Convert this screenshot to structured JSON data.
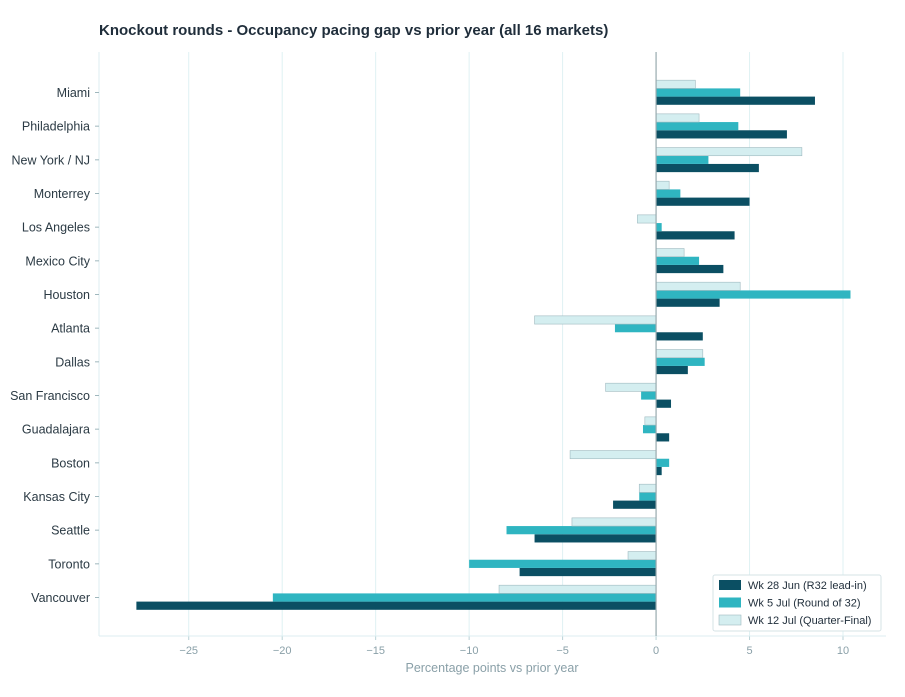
{
  "chart_data": {
    "type": "bar",
    "orientation": "horizontal",
    "title": "Knockout rounds - Occupancy pacing gap vs prior year (all 16 markets)",
    "xlabel": "Percentage points vs prior year",
    "ylabel": "",
    "xlim": [
      -29.8,
      12.3
    ],
    "xticks": [
      -25,
      -20,
      -15,
      -10,
      -5,
      0,
      5,
      10
    ],
    "xtick_labels": [
      "−25",
      "−20",
      "−15",
      "−10",
      "−5",
      "0",
      "5",
      "10"
    ],
    "grid": "vertical",
    "legend_position": "bottom-right",
    "categories": [
      "Miami",
      "Philadelphia",
      "New York / NJ",
      "Monterrey",
      "Los Angeles",
      "Mexico City",
      "Houston",
      "Atlanta",
      "Dallas",
      "San Francisco",
      "Guadalajara",
      "Boston",
      "Kansas City",
      "Seattle",
      "Toronto",
      "Vancouver"
    ],
    "series": [
      {
        "name": "Wk 28 Jun (R32 lead-in)",
        "color": "#0b4f63",
        "values": [
          8.5,
          7.0,
          5.5,
          5.0,
          4.2,
          3.6,
          3.4,
          2.5,
          1.7,
          0.8,
          0.7,
          0.3,
          -2.3,
          -6.5,
          -7.3,
          -27.8
        ]
      },
      {
        "name": "Wk 5 Jul (Round of 32)",
        "color": "#2fb5c1",
        "values": [
          4.5,
          4.4,
          2.8,
          1.3,
          0.3,
          2.3,
          10.4,
          -2.2,
          2.6,
          -0.8,
          -0.7,
          0.7,
          -0.9,
          -8.0,
          -10.0,
          -20.5
        ]
      },
      {
        "name": "Wk 12 Jul (Quarter-Final)",
        "color": "#d4eef0",
        "values": [
          2.1,
          2.3,
          7.8,
          0.7,
          -1.0,
          1.5,
          4.5,
          -6.5,
          2.5,
          -2.7,
          -0.6,
          -4.6,
          -0.9,
          -4.5,
          -1.5,
          -8.4
        ]
      }
    ]
  }
}
